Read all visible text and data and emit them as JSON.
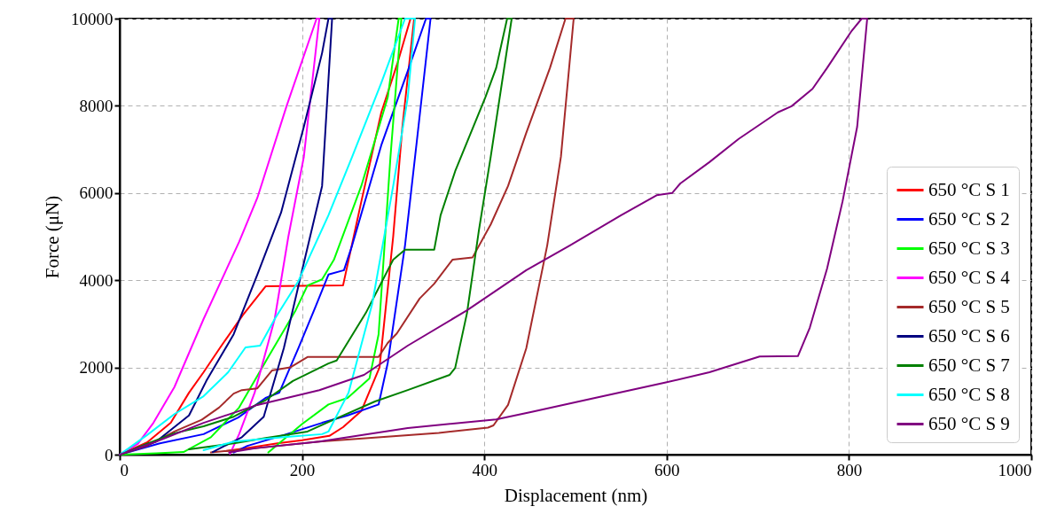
{
  "chart_data": {
    "type": "line",
    "xlabel": "Displacement (nm)",
    "ylabel": "Force (μN)",
    "xlim": [
      0,
      1000
    ],
    "ylim": [
      0,
      10000
    ],
    "xticks": [
      0,
      200,
      400,
      600,
      800,
      1000
    ],
    "yticks": [
      0,
      2000,
      4000,
      6000,
      8000,
      10000
    ],
    "grid": true,
    "legend": "bottom right",
    "line_style": "solid",
    "series": [
      {
        "name": "650 °C S 1",
        "color": "#ff0000",
        "x": [
          0,
          30,
          56,
          76,
          92,
          110,
          125,
          135,
          160,
          200,
          245,
          265,
          287,
          305,
          319,
          323,
          310,
          300,
          285,
          265,
          245,
          230,
          200,
          173,
          145,
          115
        ],
        "values": [
          0,
          280,
          730,
          1420,
          1890,
          2450,
          2900,
          3200,
          3860,
          3870,
          3880,
          5800,
          7850,
          9000,
          10000,
          10000,
          7500,
          5000,
          2000,
          1000,
          630,
          430,
          330,
          260,
          170,
          80
        ]
      },
      {
        "name": "650 °C S 2",
        "color": "#0000ff",
        "x": [
          0,
          44,
          92,
          130,
          160,
          175,
          196,
          215,
          229,
          246,
          255,
          287,
          316,
          336,
          341,
          326,
          313,
          294,
          284,
          250,
          222,
          180,
          140,
          125
        ],
        "values": [
          0,
          260,
          470,
          850,
          1300,
          1420,
          2440,
          3400,
          4130,
          4230,
          4800,
          7100,
          8800,
          10000,
          10000,
          7200,
          4800,
          2100,
          1150,
          900,
          730,
          450,
          200,
          50
        ]
      },
      {
        "name": "650 °C S 3",
        "color": "#00ff00",
        "x": [
          0,
          40,
          70,
          100,
          131,
          163,
          193,
          206,
          222,
          235,
          265,
          294,
          306,
          309,
          297,
          284,
          274,
          250,
          229,
          200,
          180,
          163
        ],
        "values": [
          0,
          30,
          60,
          400,
          1080,
          2240,
          3310,
          3880,
          4020,
          4470,
          6160,
          8190,
          10000,
          10000,
          6830,
          2760,
          1750,
          1300,
          1150,
          700,
          350,
          50
        ]
      },
      {
        "name": "650 °C S 4",
        "color": "#ff00ff",
        "x": [
          0,
          20,
          37,
          60,
          92,
          131,
          151,
          183,
          216,
          219,
          202,
          185,
          170,
          148,
          131,
          121
        ],
        "values": [
          0,
          250,
          730,
          1550,
          3110,
          4880,
          5890,
          7990,
          10000,
          10000,
          6830,
          5000,
          3110,
          1420,
          470,
          20
        ]
      },
      {
        "name": "650 °C S 5",
        "color": "#a52a2a",
        "x": [
          0,
          30,
          60,
          90,
          109,
          125,
          134,
          151,
          167,
          187,
          206,
          240,
          284,
          294,
          304,
          329,
          345,
          365,
          387,
          407,
          426,
          446,
          472,
          489,
          498,
          484,
          469,
          446,
          426,
          410,
          404,
          350,
          300,
          219,
          150,
          100
        ],
        "values": [
          0,
          200,
          530,
          800,
          1080,
          1400,
          1480,
          1520,
          1930,
          2000,
          2240,
          2240,
          2240,
          2560,
          2780,
          3580,
          3920,
          4470,
          4520,
          5280,
          6160,
          7380,
          8870,
          10000,
          10000,
          6830,
          4800,
          2440,
          1140,
          670,
          620,
          500,
          420,
          300,
          150,
          50
        ]
      },
      {
        "name": "650 °C S 6",
        "color": "#000080",
        "x": [
          0,
          40,
          76,
          95,
          125,
          151,
          177,
          202,
          222,
          229,
          233,
          222,
          199,
          180,
          158,
          134,
          115,
          102
        ],
        "values": [
          0,
          300,
          900,
          1690,
          2760,
          4130,
          5550,
          7520,
          9210,
          10000,
          10000,
          6160,
          4130,
          2440,
          870,
          400,
          200,
          60
        ]
      },
      {
        "name": "650 °C S 7",
        "color": "#008000",
        "x": [
          0,
          30,
          60,
          92,
          125,
          160,
          190,
          229,
          238,
          270,
          300,
          313,
          345,
          352,
          368,
          384,
          401,
          413,
          425,
          430,
          407,
          394,
          381,
          368,
          362,
          316,
          280,
          240,
          206,
          160,
          125,
          76
        ],
        "values": [
          0,
          250,
          490,
          650,
          870,
          1250,
          1690,
          2090,
          2160,
          3250,
          4470,
          4700,
          4700,
          5490,
          6500,
          7320,
          8190,
          8870,
          10000,
          10000,
          6830,
          5140,
          3250,
          1990,
          1830,
          1480,
          1220,
          850,
          530,
          380,
          260,
          120
        ]
      },
      {
        "name": "650 °C S 8",
        "color": "#00ffff",
        "x": [
          0,
          30,
          60,
          92,
          119,
          138,
          154,
          170,
          196,
          229,
          255,
          287,
          313,
          324,
          316,
          300,
          277,
          251,
          229,
          222,
          180,
          125,
          92
        ],
        "values": [
          0,
          450,
          930,
          1340,
          1890,
          2460,
          2500,
          3110,
          3980,
          5490,
          6830,
          8530,
          10000,
          10000,
          8190,
          6160,
          3460,
          1420,
          530,
          470,
          400,
          300,
          100
        ]
      },
      {
        "name": "650 °C S 9",
        "color": "#800080",
        "x": [
          0,
          40,
          92,
          151,
          219,
          268,
          316,
          381,
          446,
          494,
          550,
          589,
          606,
          615,
          647,
          679,
          722,
          737,
          760,
          776,
          803,
          814,
          820,
          809,
          793,
          776,
          757,
          744,
          702,
          647,
          598,
          517,
          452,
          413,
          316,
          219,
          150,
          120
        ],
        "values": [
          0,
          300,
          730,
          1140,
          1480,
          1830,
          2500,
          3310,
          4230,
          4800,
          5490,
          5950,
          6000,
          6220,
          6710,
          7240,
          7850,
          7990,
          8390,
          8870,
          9720,
          10000,
          10000,
          7520,
          5810,
          4270,
          2910,
          2260,
          2250,
          1890,
          1650,
          1280,
          980,
          810,
          610,
          300,
          150,
          50
        ]
      }
    ]
  }
}
